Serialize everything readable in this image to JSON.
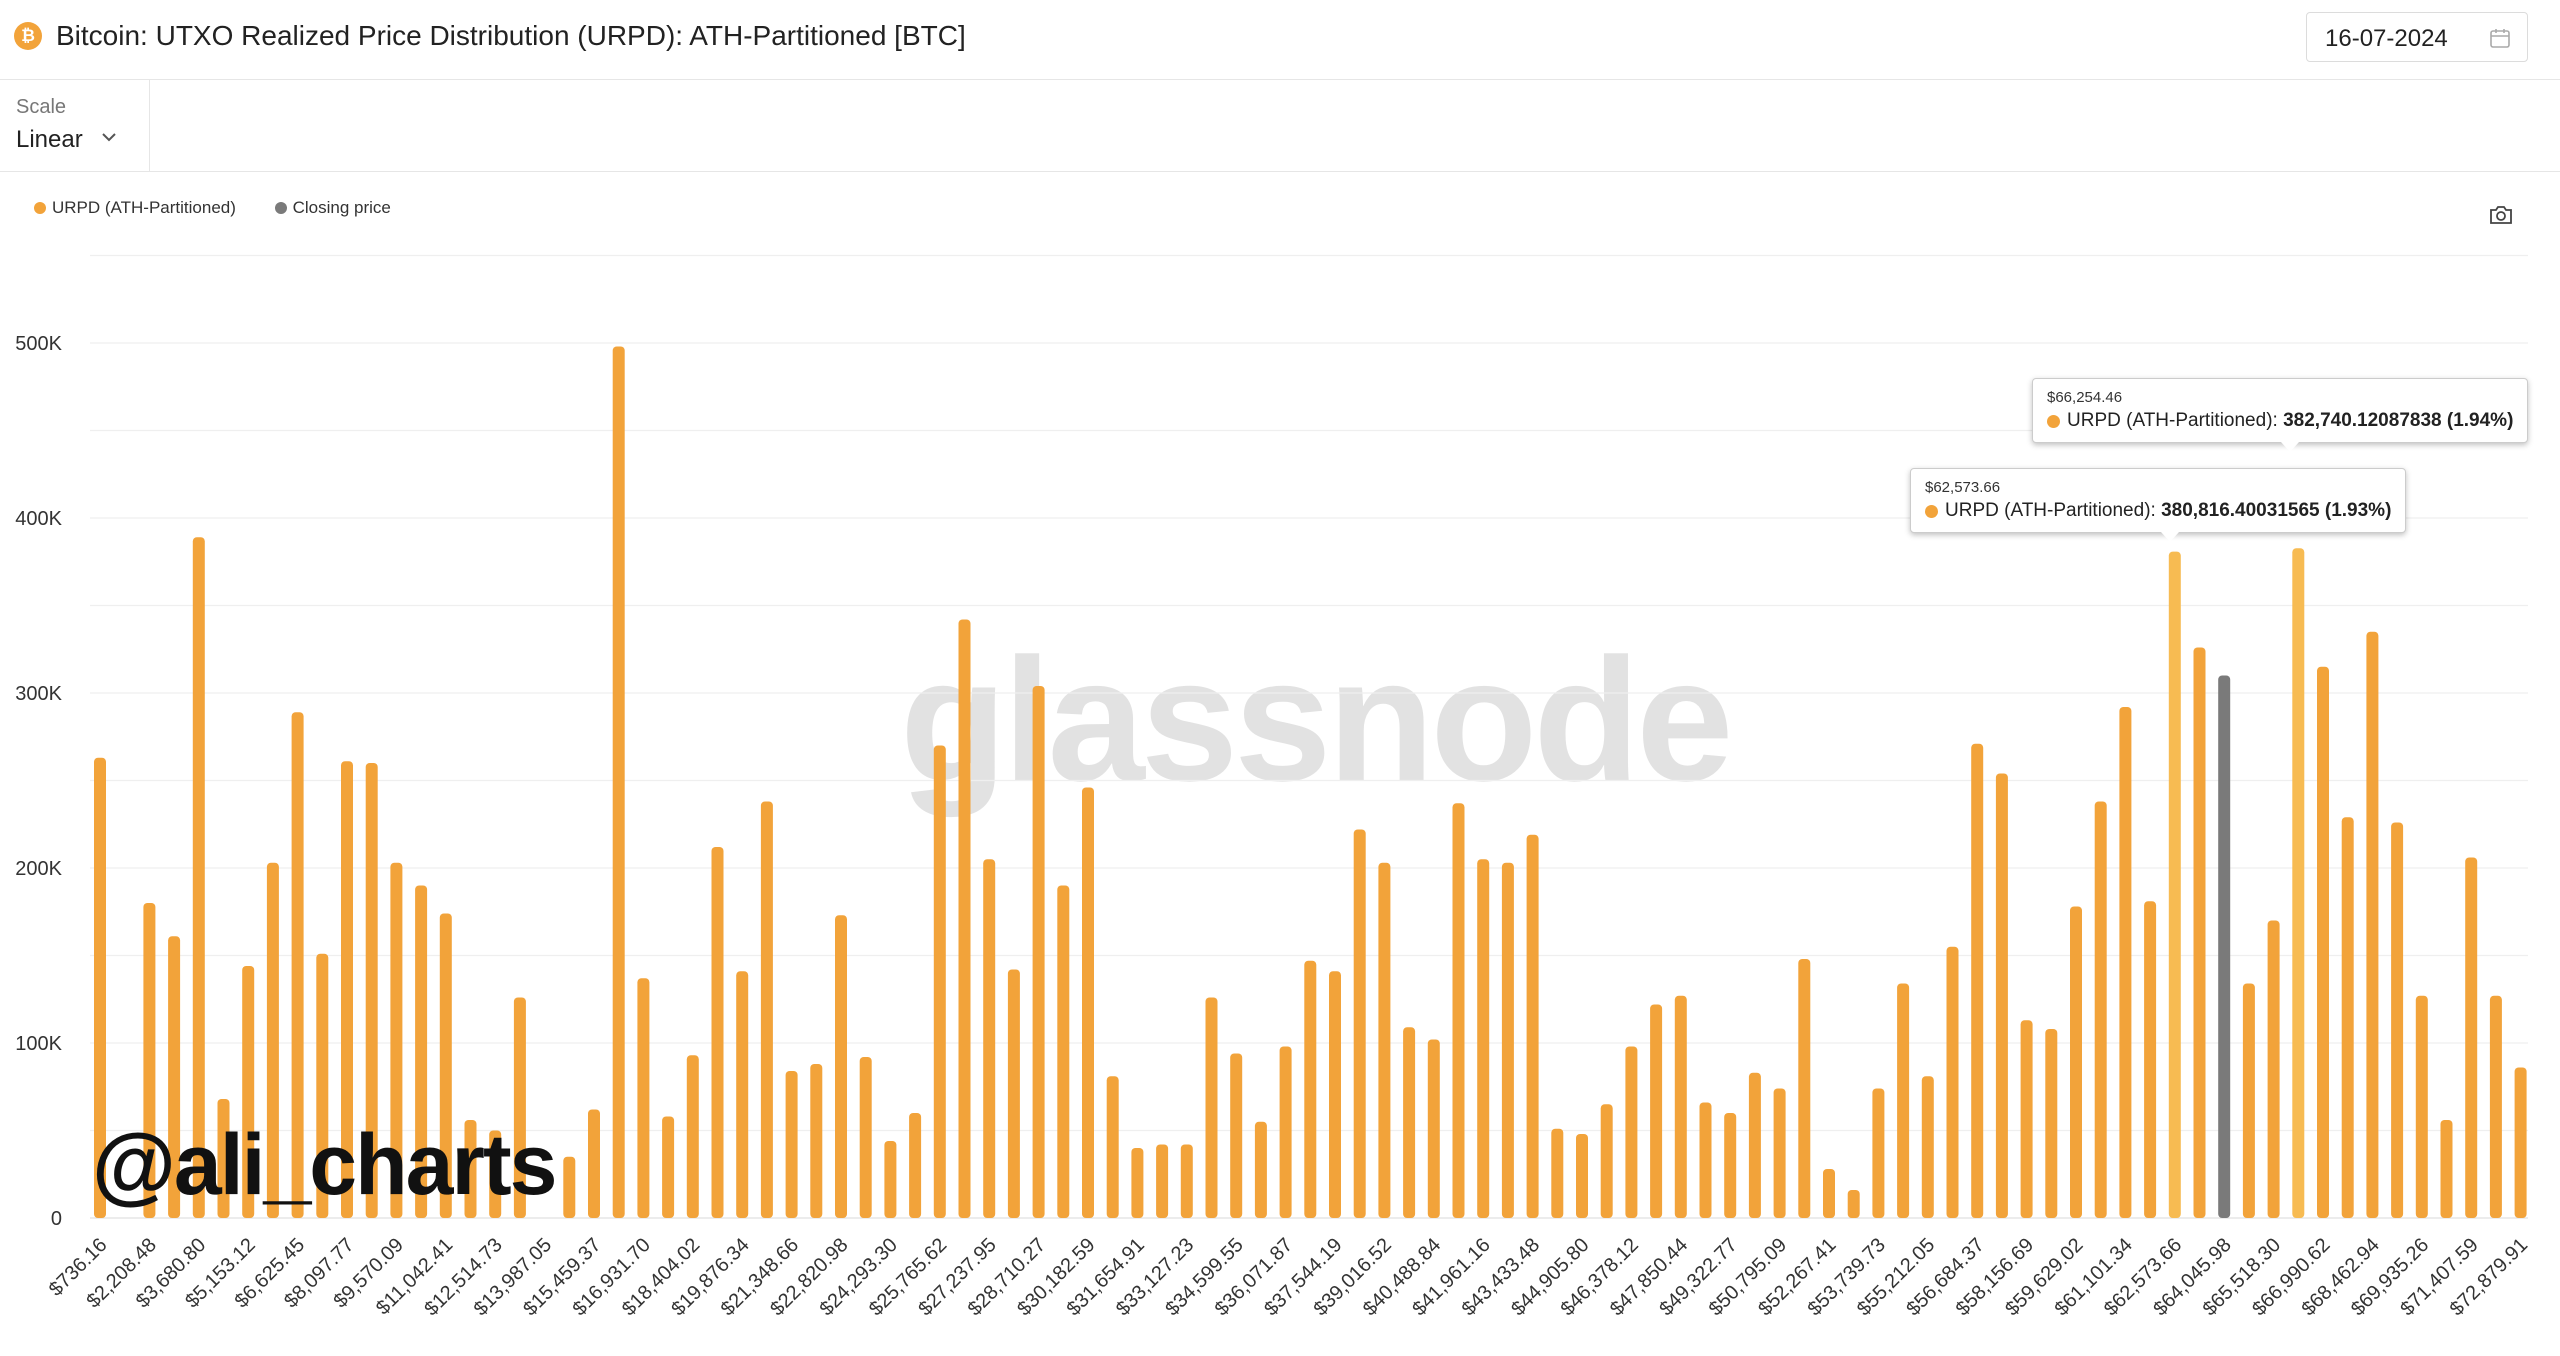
{
  "header": {
    "title": "Bitcoin: UTXO Realized Price Distribution (URPD): ATH-Partitioned [BTC]",
    "icon": "bitcoin-icon",
    "date": "16-07-2024"
  },
  "controls": {
    "scale_label": "Scale",
    "scale_value": "Linear"
  },
  "legend": [
    {
      "label": "URPD (ATH-Partitioned)",
      "color": "#f2a33a"
    },
    {
      "label": "Closing price",
      "color": "#7a7a7a"
    }
  ],
  "watermark": "glassnode",
  "signature": "@ali_charts",
  "tooltips": [
    {
      "x_label": "$66,254.46",
      "series": "URPD (ATH-Partitioned)",
      "value_text": "382,740.12087838 (1.94%)"
    },
    {
      "x_label": "$62,573.66",
      "series": "URPD (ATH-Partitioned)",
      "value_text": "380,816.40031565 (1.93%)"
    }
  ],
  "chart_data": {
    "type": "bar",
    "title": "Bitcoin: UTXO Realized Price Distribution (URPD): ATH-Partitioned [BTC]",
    "ylim": [
      0,
      550000
    ],
    "y_ticks": [
      0,
      100000,
      200000,
      300000,
      400000,
      500000
    ],
    "y_tick_labels": [
      "0",
      "100K",
      "200K",
      "300K",
      "400K",
      "500K"
    ],
    "grid": true,
    "legend_position": "top-left",
    "x_tick_labels": [
      "$736.16",
      "$2,208.48",
      "$3,680.80",
      "$5,153.12",
      "$6,625.45",
      "$8,097.77",
      "$9,570.09",
      "$11,042.41",
      "$12,514.73",
      "$13,987.05",
      "$15,459.37",
      "$16,931.70",
      "$18,404.02",
      "$19,876.34",
      "$21,348.66",
      "$22,820.98",
      "$24,293.30",
      "$25,765.62",
      "$27,237.95",
      "$28,710.27",
      "$30,182.59",
      "$31,654.91",
      "$33,127.23",
      "$34,599.55",
      "$36,071.87",
      "$37,544.19",
      "$39,016.52",
      "$40,488.84",
      "$41,961.16",
      "$43,433.48",
      "$44,905.80",
      "$46,378.12",
      "$47,850.44",
      "$49,322.77",
      "$50,795.09",
      "$52,267.41",
      "$53,739.73",
      "$55,212.05",
      "$56,684.37",
      "$58,156.69",
      "$59,629.02",
      "$61,101.34",
      "$62,573.66",
      "$64,045.98",
      "$65,518.30",
      "$66,990.62",
      "$68,462.94",
      "$69,935.26",
      "$71,407.59",
      "$72,879.91"
    ],
    "bucket_width": 736.16,
    "series": [
      {
        "name": "URPD (ATH-Partitioned)",
        "color": "#f2a33a",
        "values": [
          263000,
          0,
          180000,
          161000,
          389000,
          68000,
          144000,
          203000,
          289000,
          151000,
          261000,
          260000,
          203000,
          190000,
          174000,
          56000,
          50000,
          126000,
          0,
          35000,
          62000,
          498000,
          137000,
          58000,
          93000,
          212000,
          141000,
          238000,
          84000,
          88000,
          173000,
          92000,
          44000,
          60000,
          270000,
          342000,
          205000,
          142000,
          304000,
          190000,
          246000,
          81000,
          40000,
          42000,
          42000,
          126000,
          94000,
          55000,
          98000,
          147000,
          141000,
          222000,
          203000,
          109000,
          102000,
          237000,
          205000,
          203000,
          219000,
          51000,
          48000,
          65000,
          98000,
          122000,
          127000,
          66000,
          60000,
          83000,
          74000,
          148000,
          28000,
          16000,
          74000,
          134000,
          81000,
          155000,
          271000,
          254000,
          113000,
          108000,
          178000,
          238000,
          292000,
          181000,
          380816,
          326000,
          0,
          134000,
          170000,
          382740,
          315000,
          229000,
          335000,
          226000,
          127000,
          56000,
          206000,
          127000,
          86000
        ]
      },
      {
        "name": "Closing price",
        "color": "#7a7a7a",
        "bucket_index": 86,
        "value": 310000
      }
    ]
  }
}
